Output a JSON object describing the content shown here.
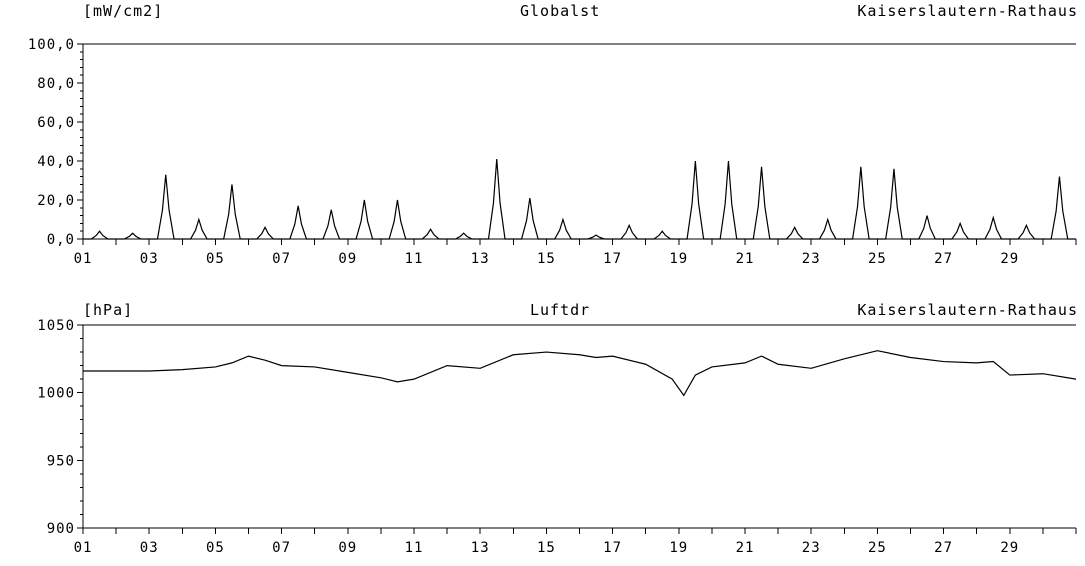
{
  "chart_data": [
    {
      "type": "line",
      "unit": "[mW/cm2]",
      "parameter": "Globalst",
      "station": "Kaiserslautern-Rathaus",
      "ylim": [
        0,
        100
      ],
      "y_ticks": [
        "0,0",
        "20,0",
        "40,0",
        "60,0",
        "80,0",
        "100,0"
      ],
      "x_ticks": [
        "01",
        "03",
        "05",
        "07",
        "09",
        "11",
        "13",
        "15",
        "17",
        "19",
        "21",
        "23",
        "25",
        "27",
        "29"
      ],
      "xlim": [
        1,
        31
      ],
      "daily_peaks": [
        {
          "day": 1,
          "peak": 4
        },
        {
          "day": 2,
          "peak": 3
        },
        {
          "day": 3,
          "peak": 33
        },
        {
          "day": 4,
          "peak": 10
        },
        {
          "day": 5,
          "peak": 28
        },
        {
          "day": 6,
          "peak": 6
        },
        {
          "day": 7,
          "peak": 17
        },
        {
          "day": 8,
          "peak": 15
        },
        {
          "day": 9,
          "peak": 20
        },
        {
          "day": 10,
          "peak": 20
        },
        {
          "day": 11,
          "peak": 5
        },
        {
          "day": 12,
          "peak": 3
        },
        {
          "day": 13,
          "peak": 41
        },
        {
          "day": 14,
          "peak": 21
        },
        {
          "day": 15,
          "peak": 10
        },
        {
          "day": 16,
          "peak": 2
        },
        {
          "day": 17,
          "peak": 7
        },
        {
          "day": 18,
          "peak": 4
        },
        {
          "day": 19,
          "peak": 40
        },
        {
          "day": 20,
          "peak": 40
        },
        {
          "day": 21,
          "peak": 37
        },
        {
          "day": 22,
          "peak": 6
        },
        {
          "day": 23,
          "peak": 10
        },
        {
          "day": 24,
          "peak": 37
        },
        {
          "day": 25,
          "peak": 36
        },
        {
          "day": 26,
          "peak": 12
        },
        {
          "day": 27,
          "peak": 8
        },
        {
          "day": 28,
          "peak": 11
        },
        {
          "day": 29,
          "peak": 7
        },
        {
          "day": 30,
          "peak": 32
        }
      ]
    },
    {
      "type": "line",
      "unit": "[hPa]",
      "parameter": "Luftdr",
      "station": "Kaiserslautern-Rathaus",
      "ylim": [
        900,
        1050
      ],
      "y_ticks": [
        "900",
        "950",
        "1000",
        "1050"
      ],
      "x_ticks": [
        "01",
        "03",
        "05",
        "07",
        "09",
        "11",
        "13",
        "15",
        "17",
        "19",
        "21",
        "23",
        "25",
        "27",
        "29"
      ],
      "xlim": [
        1,
        31
      ],
      "x": [
        1,
        2,
        3,
        4,
        5,
        5.5,
        6,
        6.5,
        7,
        8,
        9,
        10,
        10.5,
        11,
        12,
        13,
        14,
        15,
        16,
        16.5,
        17,
        18,
        18.8,
        19.15,
        19.5,
        20,
        21,
        21.5,
        22,
        23,
        24,
        25,
        26,
        27,
        28,
        28.5,
        29,
        30,
        31
      ],
      "y": [
        1016,
        1016,
        1016,
        1017,
        1019,
        1022,
        1027,
        1024,
        1020,
        1019,
        1015,
        1011,
        1008,
        1010,
        1020,
        1018,
        1028,
        1030,
        1028,
        1026,
        1027,
        1021,
        1010,
        998,
        1013,
        1019,
        1022,
        1027,
        1021,
        1018,
        1025,
        1031,
        1026,
        1023,
        1022,
        1023,
        1013,
        1014,
        1010
      ]
    }
  ]
}
